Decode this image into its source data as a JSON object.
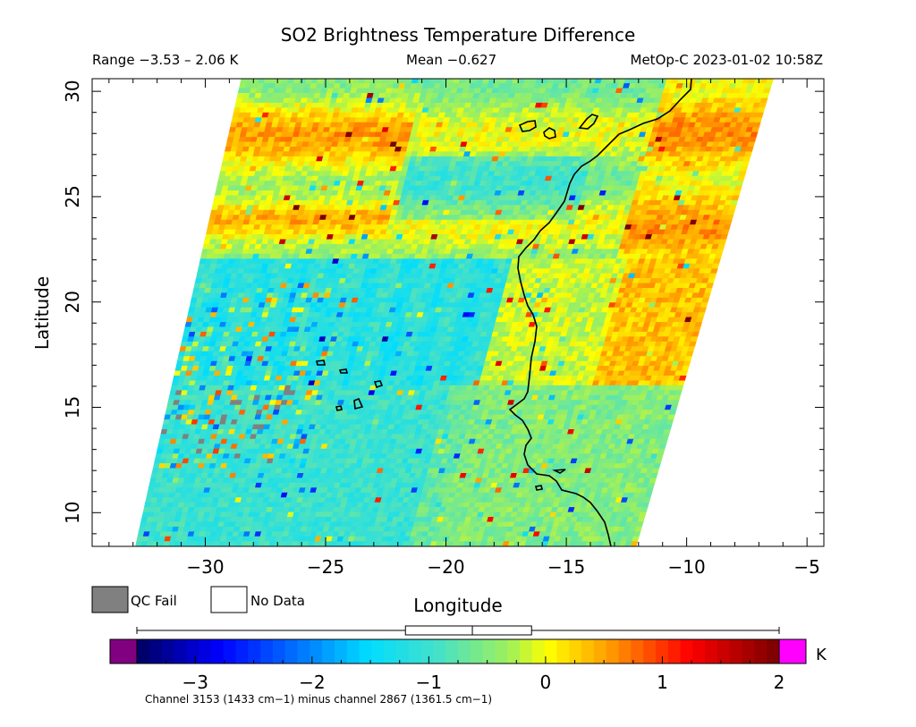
{
  "header": {
    "title": "SO2 Brightness Temperature Difference",
    "range": "Range −3.53 – 2.06 K",
    "mean": "Mean −0.627",
    "source": "MetOp-C 2023-01-02 10:58Z"
  },
  "axes": {
    "xlabel": "Longitude",
    "ylabel": "Latitude",
    "x_ticks": [
      "−30",
      "−25",
      "−20",
      "−15",
      "−10",
      "−5"
    ],
    "y_ticks": [
      "10",
      "15",
      "20",
      "25",
      "30"
    ]
  },
  "legend": {
    "qc_fail": "QC Fail",
    "no_data": "No Data"
  },
  "colorbar": {
    "unit": "K",
    "ticks": [
      "−3",
      "−2",
      "−1",
      "0",
      "1",
      "2"
    ],
    "caption": "Channel 3153 (1433 cm−1) minus channel 2867 (1361.5 cm−1)"
  },
  "chart_data": {
    "type": "heatmap",
    "title": "SO2 Brightness Temperature Difference",
    "xlabel": "Longitude",
    "ylabel": "Latitude",
    "xlim": [
      -34.7,
      -4.3
    ],
    "ylim": [
      8.4,
      30.6
    ],
    "x_tick_values": [
      -30,
      -25,
      -20,
      -15,
      -10,
      -5
    ],
    "y_tick_values": [
      10,
      15,
      20,
      25,
      30
    ],
    "value_range_K": [
      -3.53,
      2.06
    ],
    "mean_K": -0.627,
    "colorbar_range_K": [
      -3.5,
      2.0
    ],
    "colorbar_tick_values": [
      -3,
      -2,
      -1,
      0,
      1,
      2
    ],
    "boxplot_K": {
      "min": -3.5,
      "q1": -1.2,
      "median": -0.627,
      "q3": -0.12,
      "max": 2.0
    },
    "colors": {
      "qc_fail": "#808080",
      "under": "#800080",
      "over": "#ff00ff"
    },
    "swath_corners_lonlat": [
      [
        -28.5,
        30.6
      ],
      [
        -6.4,
        30.6
      ],
      [
        -12.1,
        8.4
      ],
      [
        -32.9,
        8.4
      ]
    ]
  }
}
